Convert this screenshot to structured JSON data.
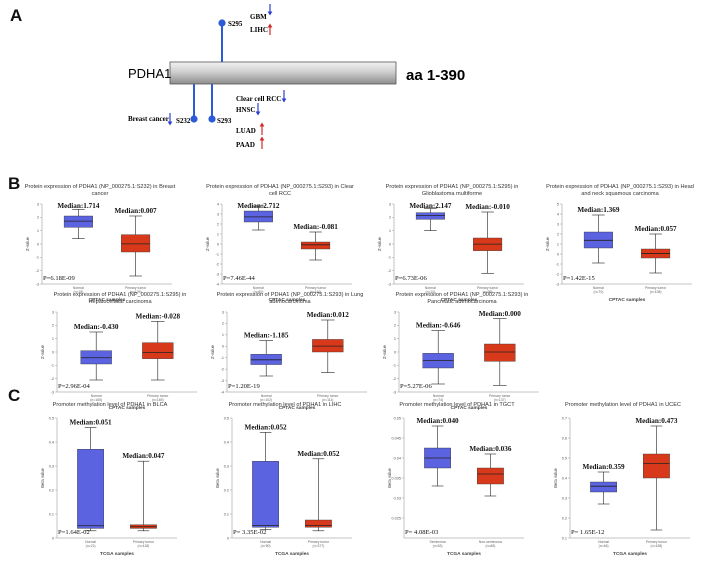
{
  "panel_a": {
    "letter": "A",
    "protein": "PDHA1",
    "range": "aa 1-390",
    "sites": [
      {
        "label": "S295",
        "side": "top",
        "cancers": [
          {
            "name": "GBM",
            "dir": "down",
            "color": "#2b3fd6"
          },
          {
            "name": "LIHC",
            "dir": "up",
            "color": "#d22a2a"
          }
        ]
      },
      {
        "label": "S232",
        "side": "bottom",
        "cancers": [
          {
            "name": "Breast cancer",
            "dir": "down",
            "color": "#2b3fd6"
          }
        ]
      },
      {
        "label": "S293",
        "side": "bottom",
        "cancers": [
          {
            "name": "Clear cell RCC",
            "dir": "down",
            "color": "#2b3fd6"
          },
          {
            "name": "HNSC",
            "dir": "down",
            "color": "#2b3fd6"
          },
          {
            "name": "LUAD",
            "dir": "up",
            "color": "#d22a2a"
          },
          {
            "name": "PAAD",
            "dir": "up",
            "color": "#d22a2a"
          }
        ]
      }
    ]
  },
  "panel_b": {
    "letter": "B"
  },
  "panel_c": {
    "letter": "C"
  },
  "colors": {
    "normal": "#5b63e0",
    "tumor": "#d9391b",
    "median": "#222222",
    "site": "#2b5bd6"
  },
  "chart_data": [
    {
      "type": "box",
      "panel": "B",
      "title": [
        "Protein expression of PDHA1 (NP_000275.1:S232) in Breast",
        "cancer"
      ],
      "ylabel": "Z-value",
      "xlabel": "CPTAC samples",
      "ylim": [
        -3,
        3
      ],
      "yticks": [
        -3,
        -2,
        -1,
        0,
        1,
        2,
        3
      ],
      "categories": [
        "Normal",
        "Primary tumor"
      ],
      "ns": [
        "(n=18)",
        "(n=125)"
      ],
      "groups": [
        {
          "name": "Normal",
          "q1": 1.25,
          "median": 1.714,
          "q3": 2.1,
          "min": 0.4,
          "max": 2.6,
          "color": "#5b63e0"
        },
        {
          "name": "Primary tumor",
          "q1": -0.6,
          "median": 0.007,
          "q3": 0.7,
          "min": -2.4,
          "max": 2.1,
          "color": "#d9391b"
        }
      ],
      "median_labels": [
        "Median:1.714",
        "Median:0.007"
      ],
      "p_label": "P=6.18E-09"
    },
    {
      "type": "box",
      "panel": "B",
      "title": [
        "Protein expression of PDHA1 (NP_000275.1:S293) in Clear",
        "cell RCC"
      ],
      "ylabel": "Z-value",
      "xlabel": "CPTAC samples",
      "ylim": [
        -4,
        4
      ],
      "yticks": [
        -4,
        -3,
        -2,
        -1,
        0,
        1,
        2,
        3,
        4
      ],
      "categories": [
        "Normal",
        "Primary tumor"
      ],
      "ns": [
        "(n=80)",
        "(n=110)"
      ],
      "groups": [
        {
          "name": "Normal",
          "q1": 2.2,
          "median": 2.712,
          "q3": 3.3,
          "min": 1.4,
          "max": 3.8,
          "color": "#5b63e0"
        },
        {
          "name": "Primary tumor",
          "q1": -0.5,
          "median": -0.081,
          "q3": 0.2,
          "min": -1.6,
          "max": 1.2,
          "color": "#d9391b"
        }
      ],
      "median_labels": [
        "Median:2.712",
        "Median:-0.081"
      ],
      "p_label": "P=7.46E-44"
    },
    {
      "type": "box",
      "panel": "B",
      "title": [
        "Protein expression of PDHA1 (NP_000275.1:S295) in",
        "Glioblastoma multiforme"
      ],
      "ylabel": "Z-value",
      "xlabel": "CPTAC samples",
      "ylim": [
        -3,
        3
      ],
      "yticks": [
        -3,
        -2,
        -1,
        0,
        1,
        2,
        3
      ],
      "categories": [
        "Normal",
        "Primary tumor"
      ],
      "ns": [
        "(n=10)",
        "(n=99)"
      ],
      "groups": [
        {
          "name": "Normal",
          "q1": 1.85,
          "median": 2.147,
          "q3": 2.35,
          "min": 1.0,
          "max": 2.65,
          "color": "#5b63e0"
        },
        {
          "name": "Primary tumor",
          "q1": -0.5,
          "median": -0.01,
          "q3": 0.45,
          "min": -2.2,
          "max": 2.4,
          "color": "#d9391b"
        }
      ],
      "median_labels": [
        "Median:2.147",
        "Median:-0.010"
      ],
      "p_label": "P=6.73E-06"
    },
    {
      "type": "box",
      "panel": "B",
      "title": [
        "Protein expression of PDHA1 (NP_000275.1:S293) in Head",
        "and neck squamous carcinoma"
      ],
      "ylabel": "Z-value",
      "xlabel": "CPTAC samples",
      "ylim": [
        -3,
        5
      ],
      "yticks": [
        -3,
        -2,
        -1,
        0,
        1,
        2,
        3,
        4,
        5
      ],
      "categories": [
        "Normal",
        "Primary tumor"
      ],
      "ns": [
        "(n=70)",
        "(n=108)"
      ],
      "groups": [
        {
          "name": "Normal",
          "q1": 0.6,
          "median": 1.369,
          "q3": 2.2,
          "min": -0.9,
          "max": 3.9,
          "color": "#5b63e0"
        },
        {
          "name": "Primary tumor",
          "q1": -0.4,
          "median": 0.057,
          "q3": 0.5,
          "min": -1.9,
          "max": 2.0,
          "color": "#d9391b"
        }
      ],
      "median_labels": [
        "Median:1.369",
        "Median:0.057"
      ],
      "p_label": "P=1.42E-15"
    },
    {
      "type": "box",
      "panel": "B",
      "title": [
        "Protein expression of PDHA1 (NP_000275.1:S295) in",
        "Hepatocellular carcinoma"
      ],
      "ylabel": "Z-value",
      "xlabel": "CPTAC samples",
      "ylim": [
        -3,
        3
      ],
      "yticks": [
        -3,
        -2,
        -1,
        0,
        1,
        2,
        3
      ],
      "categories": [
        "Normal",
        "Primary tumor"
      ],
      "ns": [
        "(n=165)",
        "(n=165)"
      ],
      "groups": [
        {
          "name": "Normal",
          "q1": -0.9,
          "median": -0.43,
          "q3": 0.1,
          "min": -2.1,
          "max": 1.5,
          "color": "#5b63e0"
        },
        {
          "name": "Primary tumor",
          "q1": -0.5,
          "median": -0.028,
          "q3": 0.7,
          "min": -2.1,
          "max": 2.3,
          "color": "#d9391b"
        }
      ],
      "median_labels": [
        "Median:-0.430",
        "Median:-0.028"
      ],
      "p_label": "P=2.96E-04"
    },
    {
      "type": "box",
      "panel": "B",
      "title": [
        "Protein expression of PDHA1 (NP_000275.1:S293) in Lung",
        "adenocarcinoma"
      ],
      "ylabel": "Z-value",
      "xlabel": "CPTAC samples",
      "ylim": [
        -4,
        3
      ],
      "yticks": [
        -4,
        -3,
        -2,
        -1,
        0,
        1,
        2,
        3
      ],
      "categories": [
        "Normal",
        "Primary tumor"
      ],
      "ns": [
        "(n=102)",
        "(n=111)"
      ],
      "groups": [
        {
          "name": "Normal",
          "q1": -1.6,
          "median": -1.185,
          "q3": -0.7,
          "min": -2.6,
          "max": 0.5,
          "color": "#5b63e0"
        },
        {
          "name": "Primary tumor",
          "q1": -0.5,
          "median": 0.012,
          "q3": 0.6,
          "min": -2.3,
          "max": 2.3,
          "color": "#d9391b"
        }
      ],
      "median_labels": [
        "Median:-1.185",
        "Median:0.012"
      ],
      "p_label": "P=1.20E-19"
    },
    {
      "type": "box",
      "panel": "B",
      "title": [
        "Protein expression of PDHA1 (NP_000275.1:S293) in",
        "Pancreatic adenocarcinoma"
      ],
      "ylabel": "Z-value",
      "xlabel": "CPTAC samples",
      "ylim": [
        -3,
        3
      ],
      "yticks": [
        -3,
        -2,
        -1,
        0,
        1,
        2,
        3
      ],
      "categories": [
        "Normal",
        "Primary tumor"
      ],
      "ns": [
        "(n=74)",
        "(n=137)"
      ],
      "groups": [
        {
          "name": "Normal",
          "q1": -1.2,
          "median": -0.646,
          "q3": -0.1,
          "min": -2.4,
          "max": 1.6,
          "color": "#5b63e0"
        },
        {
          "name": "Primary tumor",
          "q1": -0.7,
          "median": 0.0,
          "q3": 0.6,
          "min": -2.5,
          "max": 2.5,
          "color": "#d9391b"
        }
      ],
      "median_labels": [
        "Median:-0.646",
        "Median:0.000"
      ],
      "p_label": "P=5.27E-06"
    },
    {
      "type": "box",
      "panel": "C",
      "title": [
        "Promoter methylation level of PDHA1 in BLCA"
      ],
      "ylabel": "Beta value",
      "xlabel": "TCGA samples",
      "ylim": [
        0,
        0.5
      ],
      "yticks": [
        0,
        0.1,
        0.2,
        0.3,
        0.4,
        0.5
      ],
      "categories": [
        "Normal",
        "Primary tumor"
      ],
      "ns": [
        "(n=21)",
        "(n=418)"
      ],
      "groups": [
        {
          "name": "Normal",
          "q1": 0.04,
          "median": 0.051,
          "q3": 0.37,
          "min": 0.03,
          "max": 0.46,
          "color": "#5b63e0"
        },
        {
          "name": "Primary tumor",
          "q1": 0.04,
          "median": 0.047,
          "q3": 0.055,
          "min": 0.03,
          "max": 0.32,
          "color": "#d9391b"
        }
      ],
      "median_labels": [
        "Median:0.051",
        "Median:0.047"
      ],
      "p_label": "P=1.64E-02"
    },
    {
      "type": "box",
      "panel": "C",
      "title": [
        "Promoter methylation level of PDHA1 in LIHC"
      ],
      "ylabel": "Beta value",
      "xlabel": "TCGA samples",
      "ylim": [
        0,
        0.5
      ],
      "yticks": [
        0,
        0.1,
        0.2,
        0.3,
        0.4,
        0.5
      ],
      "categories": [
        "Normal",
        "Primary tumor"
      ],
      "ns": [
        "(n=50)",
        "(n=377)"
      ],
      "groups": [
        {
          "name": "Normal",
          "q1": 0.045,
          "median": 0.052,
          "q3": 0.32,
          "min": 0.035,
          "max": 0.44,
          "color": "#5b63e0"
        },
        {
          "name": "Primary tumor",
          "q1": 0.045,
          "median": 0.052,
          "q3": 0.075,
          "min": 0.03,
          "max": 0.33,
          "color": "#d9391b"
        }
      ],
      "median_labels": [
        "Median:0.052",
        "Median:0.052"
      ],
      "p_label": "P= 3.35E-02"
    },
    {
      "type": "box",
      "panel": "C",
      "title": [
        "Promoter methylation level of PDHA1 in TGCT"
      ],
      "ylabel": "Beta value",
      "xlabel": "TCGA samples",
      "ylim": [
        0.02,
        0.05
      ],
      "yticks": [
        0.025,
        0.03,
        0.035,
        0.04,
        0.045,
        0.05
      ],
      "categories": [
        "Seminoma",
        "Non-seminoma"
      ],
      "ns": [
        "(n=63)",
        "(n=68)"
      ],
      "groups": [
        {
          "name": "Seminoma",
          "q1": 0.0375,
          "median": 0.04,
          "q3": 0.0425,
          "min": 0.033,
          "max": 0.048,
          "color": "#5b63e0"
        },
        {
          "name": "Non-seminoma",
          "q1": 0.0335,
          "median": 0.036,
          "q3": 0.0375,
          "min": 0.0305,
          "max": 0.041,
          "color": "#d9391b"
        }
      ],
      "median_labels": [
        "Median:0.040",
        "Median:0.036"
      ],
      "p_label": "P= 4.08E-03"
    },
    {
      "type": "box",
      "panel": "C",
      "title": [
        "Promoter methylation level of PDHA1 in UCEC"
      ],
      "ylabel": "Beta value",
      "xlabel": "TCGA samples",
      "ylim": [
        0.1,
        0.7
      ],
      "yticks": [
        0.1,
        0.2,
        0.3,
        0.4,
        0.5,
        0.6,
        0.7
      ],
      "categories": [
        "Normal",
        "Primary tumor"
      ],
      "ns": [
        "(n=46)",
        "(n=438)"
      ],
      "groups": [
        {
          "name": "Normal",
          "q1": 0.33,
          "median": 0.359,
          "q3": 0.38,
          "min": 0.27,
          "max": 0.43,
          "color": "#5b63e0"
        },
        {
          "name": "Primary tumor",
          "q1": 0.4,
          "median": 0.473,
          "q3": 0.52,
          "min": 0.14,
          "max": 0.66,
          "color": "#d9391b"
        }
      ],
      "median_labels": [
        "Median:0.359",
        "Median:0.473"
      ],
      "p_label": "P= 1.65E-12"
    }
  ]
}
